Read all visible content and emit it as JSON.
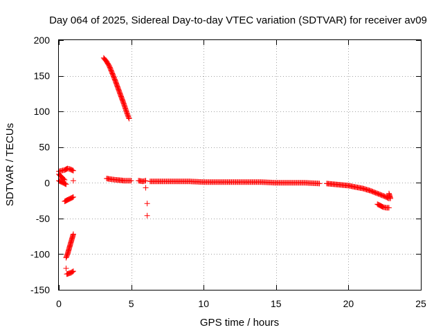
{
  "chart_data": {
    "type": "scatter",
    "title": "Day 064 of 2025, Sidereal Day-to-day VTEC variation (SDTVAR) for receiver av09",
    "xlabel": "GPS time / hours",
    "ylabel": "SDTVAR / TECUs",
    "xlim": [
      0,
      25
    ],
    "ylim": [
      -150,
      200
    ],
    "xticks": [
      0,
      5,
      10,
      15,
      20,
      25
    ],
    "yticks": [
      -150,
      -100,
      -50,
      0,
      50,
      100,
      150,
      200
    ],
    "xtick_labels": [
      "0",
      "5",
      "10",
      "15",
      "20",
      "25"
    ],
    "ytick_labels": [
      "-150",
      "-100",
      "-50",
      "0",
      "50",
      "100",
      "150",
      "200"
    ],
    "grid": true,
    "marker": "plus",
    "color": "#ff0000",
    "series": [
      {
        "name": "SDTVAR",
        "segments": [
          {
            "x": [
              0.0,
              0.2,
              0.4,
              0.6,
              0.8,
              1.0
            ],
            "y": [
              16,
              17,
              18,
              20,
              19,
              17
            ]
          },
          {
            "x": [
              0.0,
              0.1,
              0.2,
              0.3,
              0.4
            ],
            "y": [
              12,
              10,
              8,
              6,
              4
            ]
          },
          {
            "x": [
              0.0,
              0.1,
              0.2,
              0.3,
              0.4,
              0.5
            ],
            "y": [
              3,
              2,
              1,
              0,
              -1,
              -2
            ]
          },
          {
            "x": [
              1.0
            ],
            "y": [
              3
            ]
          },
          {
            "x": [
              0.4,
              0.6,
              0.8,
              1.0
            ],
            "y": [
              -26,
              -24,
              -22,
              -20
            ]
          },
          {
            "x": [
              0.5,
              0.6,
              0.7,
              0.8,
              0.9,
              1.0
            ],
            "y": [
              -105,
              -100,
              -93,
              -86,
              -79,
              -72
            ]
          },
          {
            "x": [
              0.5
            ],
            "y": [
              -120
            ]
          },
          {
            "x": [
              0.55,
              0.7,
              0.85,
              1.0
            ],
            "y": [
              -128,
              -127,
              -126,
              -124
            ]
          },
          {
            "x": [
              3.1,
              3.3,
              3.5,
              3.7,
              3.9,
              4.1,
              4.3,
              4.5,
              4.7,
              4.85
            ],
            "y": [
              175,
              170,
              163,
              153,
              143,
              132,
              121,
              110,
              98,
              90
            ]
          },
          {
            "x": [
              3.3,
              3.6,
              4.0,
              4.5,
              5.0
            ],
            "y": [
              6,
              5,
              4,
              3,
              3
            ]
          },
          {
            "x": [
              5.5,
              5.8,
              6.0
            ],
            "y": [
              3,
              2,
              3
            ]
          },
          {
            "x": [
              6.0
            ],
            "y": [
              -7
            ]
          },
          {
            "x": [
              6.1
            ],
            "y": [
              -29
            ]
          },
          {
            "x": [
              6.1
            ],
            "y": [
              -46
            ]
          },
          {
            "x": [
              6.3,
              7.0,
              8.0,
              9.0,
              10.0,
              11.0,
              12.0,
              13.0,
              14.0,
              15.0,
              16.0,
              17.0,
              18.0
            ],
            "y": [
              2,
              2,
              2,
              2,
              1,
              1,
              1,
              1,
              1,
              0,
              0,
              0,
              -1
            ]
          },
          {
            "x": [
              18.5,
              19.0,
              19.5,
              20.0,
              20.5,
              21.0,
              21.5,
              22.0,
              22.5,
              22.8
            ],
            "y": [
              -1,
              -2,
              -3,
              -4,
              -6,
              -8,
              -11,
              -15,
              -19,
              -22
            ]
          },
          {
            "x": [
              22.0,
              22.2,
              22.4,
              22.6,
              22.8
            ],
            "y": [
              -30,
              -32,
              -34,
              -35,
              -35
            ]
          },
          {
            "x": [
              22.8,
              22.9
            ],
            "y": [
              -15,
              -22
            ]
          }
        ]
      }
    ]
  }
}
